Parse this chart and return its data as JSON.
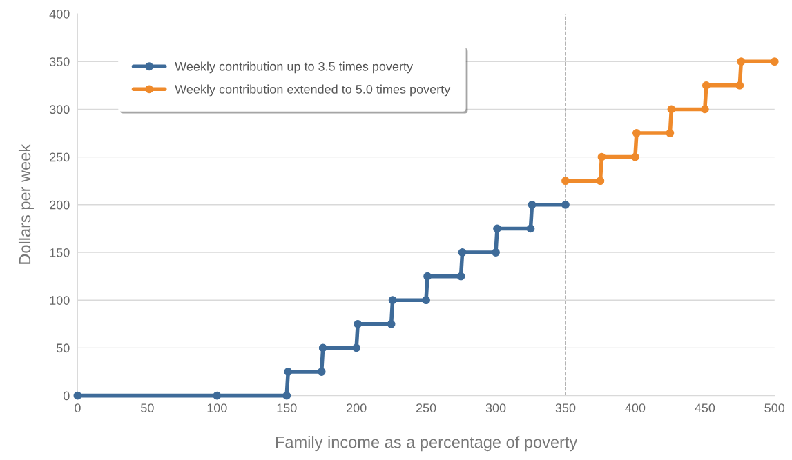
{
  "chart_data": {
    "type": "line",
    "xlabel": "Family income as a percentage of poverty",
    "ylabel": "Dollars per week",
    "xlim": [
      0,
      500
    ],
    "ylim": [
      0,
      400
    ],
    "xticks": [
      0,
      50,
      100,
      150,
      200,
      250,
      300,
      350,
      400,
      450,
      500
    ],
    "yticks": [
      0,
      50,
      100,
      150,
      200,
      250,
      300,
      350,
      400
    ],
    "grid": "y",
    "legend": "top left",
    "marker": "circle",
    "line_style": "solid",
    "ref_lines": [
      {
        "axis": "x",
        "value": 350,
        "color": "#999999",
        "line_style": "dashed"
      }
    ],
    "series": [
      {
        "name": "Weekly contribution up to 3.5 times poverty",
        "color": "#3e6b99",
        "x": [
          0,
          100,
          150,
          151,
          175,
          176,
          200,
          201,
          225,
          226,
          250,
          251,
          275,
          276,
          300,
          301,
          325,
          326,
          350
        ],
        "values": [
          0,
          0,
          0,
          25,
          25,
          50,
          50,
          75,
          75,
          100,
          100,
          125,
          125,
          150,
          150,
          175,
          175,
          200,
          200
        ]
      },
      {
        "name": "Weekly contribution extended to 5.0 times poverty",
        "color": "#ef8a2b",
        "x": [
          350,
          375,
          376,
          400,
          401,
          425,
          426,
          450,
          451,
          475,
          476,
          500
        ],
        "values": [
          225,
          225,
          250,
          250,
          275,
          275,
          300,
          300,
          325,
          325,
          350,
          350
        ]
      }
    ]
  }
}
